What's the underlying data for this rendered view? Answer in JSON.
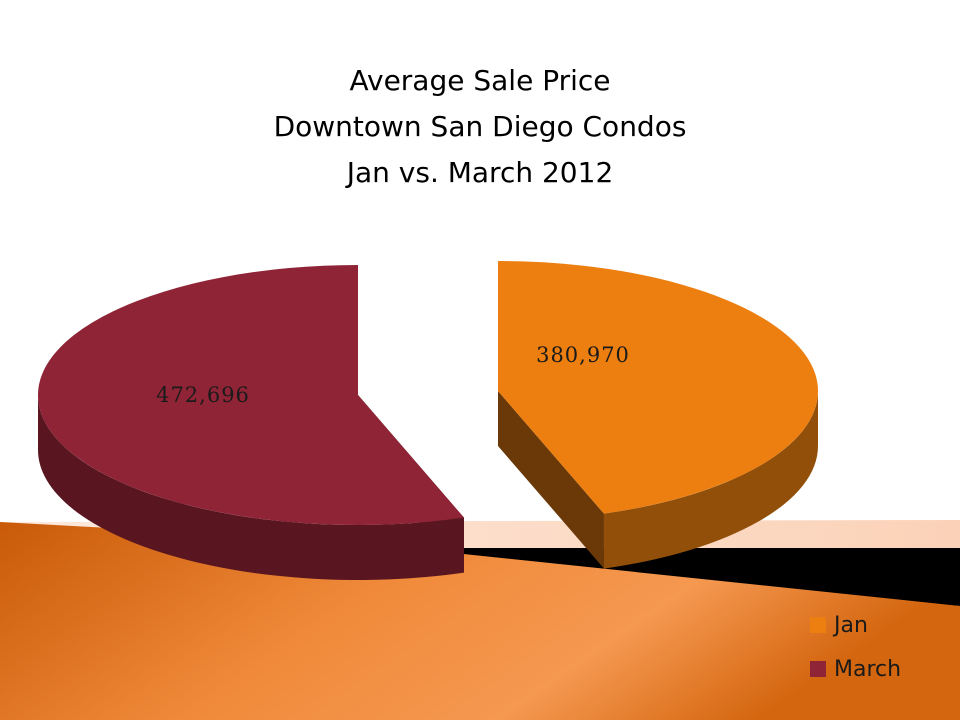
{
  "chart_data": {
    "type": "pie",
    "title_lines": [
      "Average Sale Price",
      "Downtown San Diego Condos",
      "Jan vs. March 2012"
    ],
    "categories": [
      "Jan",
      "March"
    ],
    "values": [
      380970,
      472696
    ],
    "data_labels": [
      "380,970",
      "472,696"
    ],
    "colors": [
      "#ec7f10",
      "#8f2436"
    ],
    "legend_placement": "bottom-right",
    "exploded": true,
    "style": "3d"
  }
}
